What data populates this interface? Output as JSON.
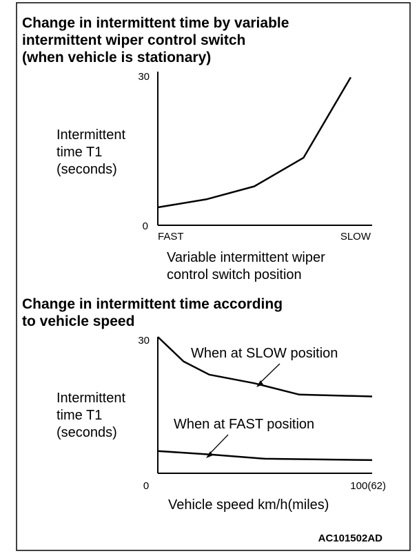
{
  "figure": {
    "code": "AC101502AD"
  },
  "chart_data": [
    {
      "type": "line",
      "title_lines": [
        "Change in intermittent time by variable",
        "intermittent wiper control switch",
        "(when vehicle is stationary)"
      ],
      "ylabel_lines": [
        "Intermittent",
        "time T1",
        "(seconds)"
      ],
      "xlabel_lines": [
        "Variable intermittent wiper",
        "control switch position"
      ],
      "x_tick_labels": {
        "start": "FAST",
        "end": "SLOW"
      },
      "y_tick_labels": {
        "min": "0",
        "max": "30"
      },
      "xlim": [
        0,
        1
      ],
      "ylim": [
        0,
        30
      ],
      "grid": false,
      "series": [
        {
          "x": [
            0,
            0.23,
            0.45,
            0.68,
            0.9
          ],
          "y": [
            3.5,
            5.1,
            7.6,
            13.2,
            28.9
          ]
        }
      ]
    },
    {
      "type": "line",
      "title_lines": [
        "Change in intermittent time according",
        "to vehicle speed"
      ],
      "ylabel_lines": [
        "Intermittent",
        "time T1",
        "(seconds)"
      ],
      "xlabel": "Vehicle speed  km/h(miles)",
      "x_tick_labels": {
        "min": "0",
        "max": "100(62)"
      },
      "y_tick_labels": {
        "max": "30"
      },
      "xlim": [
        0,
        100
      ],
      "ylim": [
        0,
        30
      ],
      "grid": false,
      "series": [
        {
          "name": "When at SLOW position",
          "x": [
            0,
            12,
            24,
            45,
            66,
            100
          ],
          "y": [
            30,
            24.6,
            21.7,
            19.8,
            17.3,
            16.9
          ]
        },
        {
          "name": "When at FAST position",
          "x": [
            0,
            25,
            50,
            100
          ],
          "y": [
            4.9,
            4.1,
            3.2,
            2.9
          ]
        }
      ]
    }
  ]
}
